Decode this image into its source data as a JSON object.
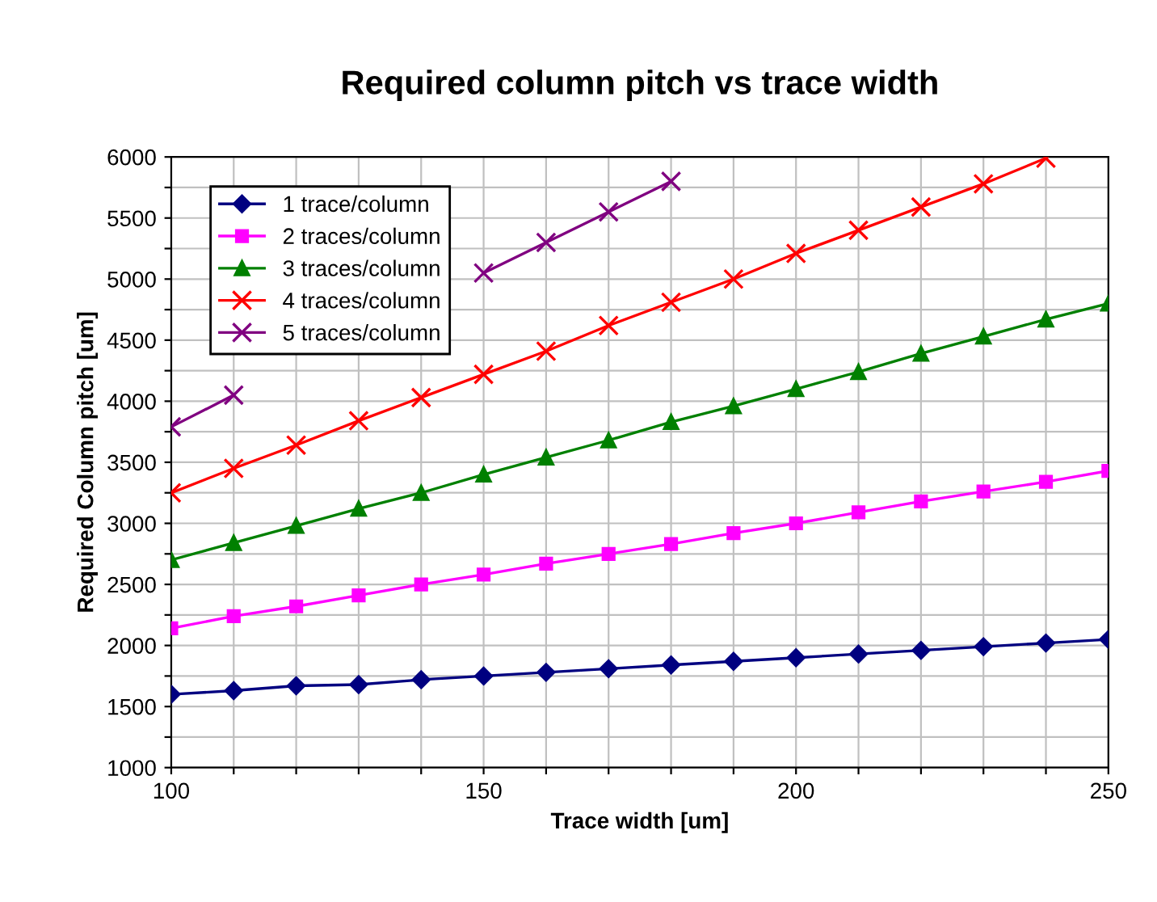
{
  "chart_data": {
    "type": "line",
    "title": "Required column pitch vs trace width",
    "xlabel": "Trace width [um]",
    "ylabel": "Required Column pitch [um]",
    "x": [
      100,
      110,
      120,
      130,
      140,
      150,
      160,
      170,
      180,
      190,
      200,
      210,
      220,
      230,
      240,
      250
    ],
    "series": [
      {
        "name": "1 trace/column",
        "color": "#000080",
        "marker": "diamond",
        "values": [
          1600,
          1630,
          1670,
          1680,
          1720,
          1750,
          1780,
          1810,
          1840,
          1870,
          1900,
          1930,
          1960,
          1990,
          2020,
          2050
        ]
      },
      {
        "name": "2 traces/column",
        "color": "#ff00ff",
        "marker": "square",
        "values": [
          2140,
          2240,
          2320,
          2410,
          2500,
          2580,
          2670,
          2750,
          2830,
          2920,
          3000,
          3090,
          3180,
          3260,
          3340,
          3430
        ]
      },
      {
        "name": "3 traces/column",
        "color": "#008000",
        "marker": "triangle",
        "values": [
          2700,
          2840,
          2980,
          3120,
          3250,
          3400,
          3540,
          3680,
          3830,
          3960,
          4100,
          4240,
          4390,
          4530,
          4670,
          4800
        ]
      },
      {
        "name": "4 traces/column",
        "color": "#ff0000",
        "marker": "cross",
        "values": [
          3250,
          3450,
          3640,
          3840,
          4030,
          4220,
          4410,
          4620,
          4810,
          5000,
          5210,
          5400,
          5590,
          5780,
          5990,
          null
        ]
      },
      {
        "name": "5 traces/column",
        "color": "#800080",
        "marker": "cross",
        "values": [
          3790,
          4050,
          null,
          null,
          null,
          5050,
          5300,
          5550,
          5800,
          null,
          null,
          null,
          null,
          null,
          null,
          null
        ]
      }
    ],
    "xlim": [
      100,
      250
    ],
    "ylim": [
      1000,
      6000
    ],
    "xticks": [
      100,
      {
        "value": 110,
        "label": null
      },
      {
        "value": 120,
        "label": null
      },
      {
        "value": 130,
        "label": null
      },
      {
        "value": 140,
        "label": null
      },
      150,
      {
        "value": 160,
        "label": null
      },
      {
        "value": 170,
        "label": null
      },
      {
        "value": 180,
        "label": null
      },
      {
        "value": 190,
        "label": null
      },
      200,
      {
        "value": 210,
        "label": null
      },
      {
        "value": 220,
        "label": null
      },
      {
        "value": 230,
        "label": null
      },
      {
        "value": 240,
        "label": null
      },
      250
    ],
    "yticks": [
      1000,
      {
        "value": 1250,
        "label": null
      },
      1500,
      {
        "value": 1750,
        "label": null
      },
      2000,
      {
        "value": 2250,
        "label": null
      },
      2500,
      {
        "value": 2750,
        "label": null
      },
      3000,
      {
        "value": 3250,
        "label": null
      },
      3500,
      {
        "value": 3750,
        "label": null
      },
      4000,
      {
        "value": 4250,
        "label": null
      },
      4500,
      {
        "value": 4750,
        "label": null
      },
      5000,
      {
        "value": 5250,
        "label": null
      },
      5500,
      {
        "value": 5750,
        "label": null
      },
      6000
    ],
    "grid": true,
    "legend": "top left",
    "line_style": "solid"
  }
}
